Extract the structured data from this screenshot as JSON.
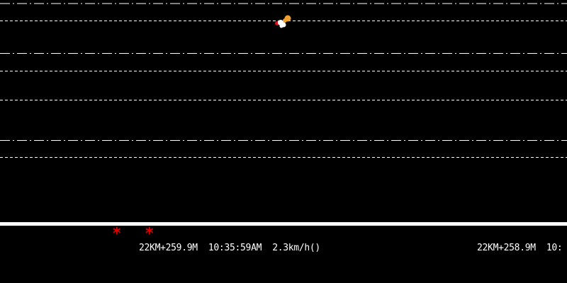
{
  "colors": {
    "background": "#000000",
    "lane_line": "#ffffff",
    "marker": "#e00000",
    "vehicle_orange": "#f0a030",
    "vehicle_red": "#e01010"
  },
  "markers": [
    {
      "symbol": "*"
    },
    {
      "symbol": "*"
    }
  ],
  "readouts": [
    {
      "mileage": "22KM+259.9M",
      "time": "10:35:59AM",
      "speed": "2.3km/h()"
    },
    {
      "mileage": "22KM+258.9M",
      "time": "10:",
      "speed": ""
    }
  ]
}
